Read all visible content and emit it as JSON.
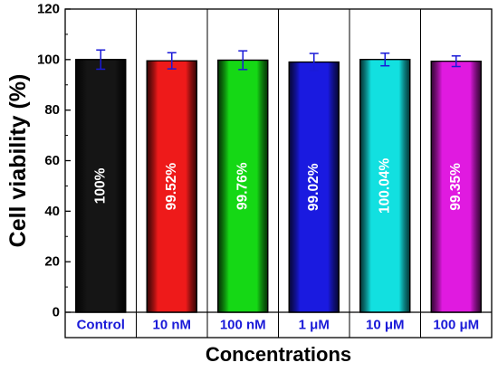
{
  "chart_data": {
    "type": "bar",
    "xlabel": "Concentrations",
    "ylabel": "Cell viability (%)",
    "ylim": [
      0,
      120
    ],
    "yticks": [
      0,
      20,
      40,
      60,
      80,
      100,
      120
    ],
    "grid": false,
    "categories": [
      "Control",
      "10 nM",
      "100 nM",
      "1 μM",
      "10 μM",
      "100 μM"
    ],
    "values": [
      100,
      99.52,
      99.76,
      99.02,
      100.04,
      99.35
    ],
    "errors": [
      3.8,
      3.2,
      3.7,
      3.4,
      2.5,
      2.1
    ],
    "data_labels": [
      "100%",
      "99.52%",
      "99.76%",
      "99.02%",
      "100.04%",
      "99.35%"
    ],
    "colors": [
      "#151515",
      "#ee1a1a",
      "#15d815",
      "#1a1ae0",
      "#12e0e0",
      "#e01ae0"
    ],
    "label_colors": [
      "#ffffff",
      "#ffffff",
      "#ffffff",
      "#ffffff",
      "#ffffff",
      "#ffffff"
    ],
    "category_label_color": "#1a1ad8",
    "error_bar_color": "#1a1ad8"
  }
}
